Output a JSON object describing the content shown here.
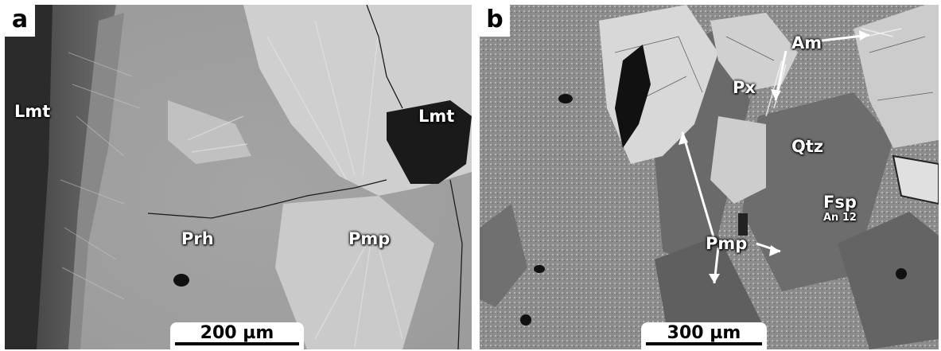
{
  "panels": [
    {
      "letter": "a",
      "labels": {
        "lmt_left": "Lmt",
        "lmt_right": "Lmt",
        "prh": "Prh",
        "pmp": "Pmp"
      },
      "scale": "200 µm"
    },
    {
      "letter": "b",
      "labels": {
        "am": "Am",
        "px": "Px",
        "qtz": "Qtz",
        "fsp": "Fsp",
        "fsp_sub": "An 12",
        "pmp": "Pmp"
      },
      "scale": "300 µm"
    }
  ],
  "colors": {
    "matrix_a": "#a9a9a9",
    "pumpellyite_a": "#d3d3d3",
    "laumontite": "#1a1a1a",
    "groundmass_b": "#8f8f8f",
    "pyroxene": "#d6d6d6",
    "feldspar": "#6a6a6a"
  }
}
